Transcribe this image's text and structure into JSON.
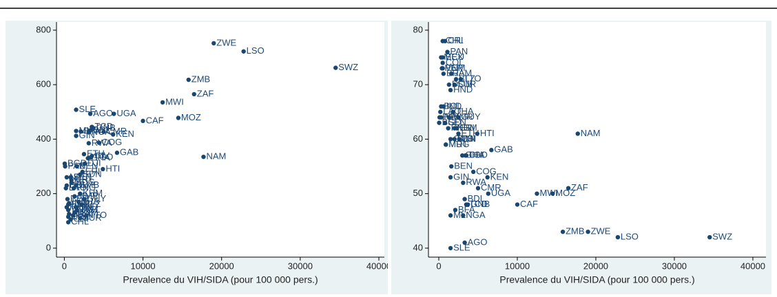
{
  "chart_data": [
    {
      "type": "scatter",
      "xlabel": "Prevalence du VIH/SIDA (pour 100 000 pers.)",
      "color": "#1a476f",
      "xlim": [
        -1000,
        40700
      ],
      "ylim": [
        -33,
        830
      ],
      "xticks": [
        0,
        10000,
        20000,
        30000,
        40000
      ],
      "yticks": [
        0,
        200,
        400,
        600,
        800
      ],
      "grid": false,
      "labels": [
        "ZWE",
        "LSO",
        "SWZ",
        "ZMB",
        "ZAF",
        "MWI",
        "CAF",
        "MOZ",
        "NAM",
        "GAB",
        "SLE",
        "AGO",
        "UGA",
        "CMR",
        "KEN",
        "COG",
        "RWA",
        "BDI",
        "TCD",
        "GNB",
        "NGA",
        "MLI",
        "BFA",
        "GIN",
        "BEN",
        "TGO",
        "CIV",
        "GHA",
        "HTI",
        "ETH",
        "DJI",
        "ERI",
        "SDN",
        "SEN",
        "MRT",
        "MDG",
        "GMB",
        "PNG",
        "KHM",
        "MMR",
        "THA",
        "IND",
        "HND",
        "GUY",
        "BLZ",
        "DOM",
        "JAM",
        "TTO",
        "SUR",
        "BRA",
        "PAN",
        "COL",
        "BOL",
        "PER",
        "ECU",
        "MEX",
        "NPL",
        "PAK",
        "BGD",
        "LAO",
        "VNM",
        "CRI",
        "CHL"
      ],
      "x": [
        19000,
        22800,
        34500,
        15800,
        16500,
        12500,
        10000,
        14500,
        17700,
        6700,
        1500,
        3300,
        6300,
        5000,
        6200,
        4400,
        3100,
        3300,
        3500,
        3700,
        3100,
        1500,
        2100,
        1500,
        1600,
        3400,
        3500,
        3000,
        4900,
        2500,
        2600,
        2300,
        2000,
        800,
        900,
        900,
        1500,
        1200,
        2000,
        1300,
        1800,
        600,
        1500,
        2500,
        2200,
        1300,
        1600,
        2800,
        2000,
        600,
        1100,
        500,
        300,
        400,
        500,
        300,
        300,
        100,
        50,
        200,
        500,
        800,
        500
      ],
      "values": [
        752,
        722,
        662,
        618,
        565,
        535,
        467,
        478,
        335,
        350,
        508,
        493,
        493,
        427,
        417,
        387,
        385,
        432,
        445,
        440,
        425,
        430,
        428,
        412,
        300,
        333,
        338,
        330,
        290,
        345,
        310,
        280,
        270,
        260,
        250,
        240,
        230,
        220,
        200,
        190,
        170,
        165,
        150,
        180,
        160,
        130,
        140,
        120,
        110,
        125,
        120,
        115,
        230,
        180,
        160,
        150,
        260,
        300,
        310,
        220,
        140,
        105,
        95
      ]
    },
    {
      "type": "scatter",
      "xlabel": "Prevalence du VIH/SIDA (pour 100 000 pers.)",
      "color": "#1a476f",
      "xlim": [
        -1316,
        41670
      ],
      "ylim": [
        38.35,
        81.5
      ],
      "xticks": [
        0,
        10000,
        20000,
        30000,
        40000
      ],
      "yticks": [
        40,
        50,
        60,
        70,
        80
      ],
      "grid": false,
      "labels": [
        "ZWE",
        "LSO",
        "SWZ",
        "ZMB",
        "ZAF",
        "MWI",
        "CAF",
        "MOZ",
        "NAM",
        "GAB",
        "SLE",
        "AGO",
        "UGA",
        "CMR",
        "KEN",
        "COG",
        "RWA",
        "BDI",
        "TCD",
        "GNB",
        "NGA",
        "MLI",
        "BFA",
        "GIN",
        "BEN",
        "TGO",
        "CIV",
        "GHA",
        "HTI",
        "ETH",
        "DJI",
        "ERI",
        "SDN",
        "SEN",
        "MRT",
        "MDG",
        "GMB",
        "PNG",
        "KHM",
        "MMR",
        "THA",
        "IND",
        "HND",
        "GUY",
        "BLZ",
        "DOM",
        "JAM",
        "TTO",
        "SUR",
        "BRA",
        "PAN",
        "COL",
        "BOL",
        "PER",
        "ECU",
        "MEX",
        "NPL",
        "PAK",
        "BGD",
        "LAO",
        "VNM",
        "CRI",
        "CHL"
      ],
      "x": [
        19000,
        22800,
        34500,
        15800,
        16500,
        12500,
        10000,
        14500,
        17700,
        6700,
        1500,
        3300,
        6300,
        5000,
        6200,
        4400,
        3100,
        3300,
        3500,
        3700,
        3100,
        1500,
        2100,
        1500,
        1600,
        3400,
        3500,
        3000,
        4900,
        2500,
        2600,
        2300,
        2000,
        800,
        900,
        900,
        1500,
        1200,
        2000,
        1300,
        1800,
        600,
        1500,
        2500,
        2200,
        1300,
        1600,
        2800,
        2000,
        600,
        1100,
        500,
        300,
        400,
        500,
        300,
        300,
        100,
        50,
        200,
        500,
        800,
        500
      ],
      "values": [
        43,
        42,
        42,
        43,
        51,
        50,
        48,
        50,
        61,
        58,
        40,
        41,
        50,
        51,
        53,
        54,
        52,
        49,
        48,
        48,
        46,
        46,
        47,
        53,
        55,
        57,
        57,
        57,
        61,
        61,
        60,
        62,
        60,
        63,
        59,
        59,
        60,
        62,
        62,
        64,
        65,
        66,
        69,
        64,
        71,
        70,
        72,
        71,
        70,
        72,
        76,
        74,
        66,
        73,
        75,
        75,
        64,
        64,
        63,
        65,
        73,
        78,
        78
      ]
    }
  ]
}
